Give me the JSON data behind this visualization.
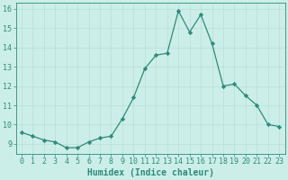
{
  "x": [
    0,
    1,
    2,
    3,
    4,
    5,
    6,
    7,
    8,
    9,
    10,
    11,
    12,
    13,
    14,
    15,
    16,
    17,
    18,
    19,
    20,
    21,
    22,
    23
  ],
  "y": [
    9.6,
    9.4,
    9.2,
    9.1,
    8.8,
    8.8,
    9.1,
    9.3,
    9.4,
    10.3,
    11.4,
    12.9,
    13.6,
    13.7,
    15.9,
    14.8,
    15.7,
    14.2,
    12.0,
    12.1,
    11.5,
    11.0,
    10.0,
    9.9
  ],
  "line_color": "#2e8b7a",
  "marker": "D",
  "marker_size": 2.2,
  "bg_color": "#cceee8",
  "grid_color": "#b8ddd7",
  "xlabel": "Humidex (Indice chaleur)",
  "xlim": [
    -0.5,
    23.5
  ],
  "ylim": [
    8.5,
    16.3
  ],
  "yticks": [
    9,
    10,
    11,
    12,
    13,
    14,
    15,
    16
  ],
  "xticks": [
    0,
    1,
    2,
    3,
    4,
    5,
    6,
    7,
    8,
    9,
    10,
    11,
    12,
    13,
    14,
    15,
    16,
    17,
    18,
    19,
    20,
    21,
    22,
    23
  ],
  "tick_color": "#2e8b7a",
  "label_fontsize": 7.0,
  "tick_fontsize": 6.0,
  "linewidth": 0.9
}
